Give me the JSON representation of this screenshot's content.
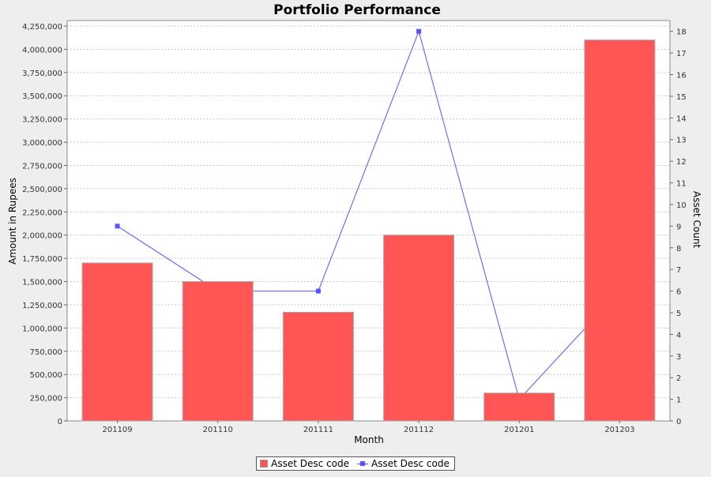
{
  "chart_data": {
    "type": "bar",
    "title": "Portfolio Performance",
    "xlabel": "Month",
    "ylabel": "Amount in Rupees",
    "y2label": "Asset Count",
    "categories": [
      "201109",
      "201110",
      "201111",
      "201112",
      "201201",
      "201203"
    ],
    "ylim": [
      0,
      4250000
    ],
    "y2lim": [
      0,
      18.5
    ],
    "yticks": [
      "0",
      "250,000",
      "500,000",
      "750,000",
      "1,000,000",
      "1,250,000",
      "1,500,000",
      "1,750,000",
      "2,000,000",
      "2,250,000",
      "2,500,000",
      "2,750,000",
      "3,000,000",
      "3,250,000",
      "3,500,000",
      "3,750,000",
      "4,000,000",
      "4,250,000"
    ],
    "y2ticks": [
      "0",
      "1",
      "2",
      "3",
      "4",
      "5",
      "6",
      "7",
      "8",
      "9",
      "10",
      "11",
      "12",
      "13",
      "14",
      "15",
      "16",
      "17",
      "18"
    ],
    "grid": true,
    "legend_position": "bottom",
    "series": [
      {
        "name": "Asset Desc code",
        "type": "bar",
        "axis": "left",
        "color": "#ff5555",
        "values": [
          1700000,
          1500000,
          1170000,
          2000000,
          300000,
          4100000
        ]
      },
      {
        "name": "Asset Desc code",
        "type": "line",
        "axis": "right",
        "color": "#5555ff",
        "values": [
          9,
          6,
          6,
          18,
          1,
          6
        ]
      }
    ]
  }
}
